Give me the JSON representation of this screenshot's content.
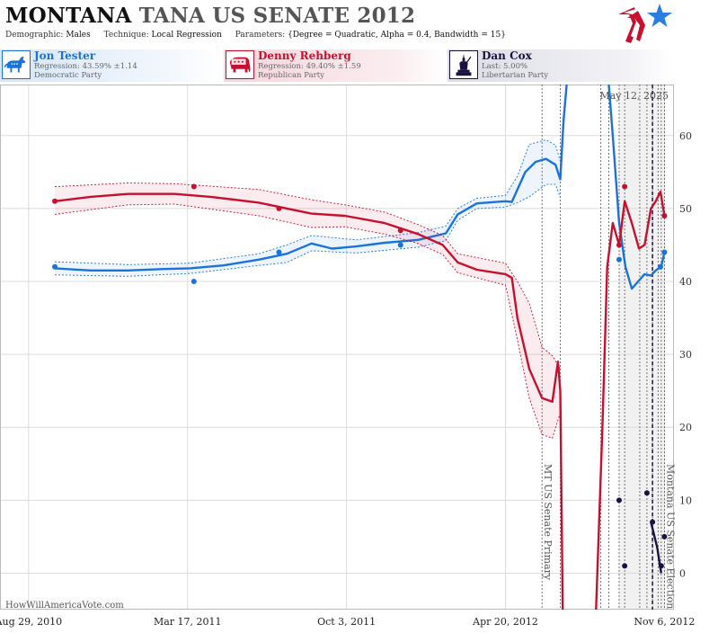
{
  "header": {
    "title_state": "MONTANA",
    "title_race": "TANA US SENATE 2012",
    "demographic_label": "Demographic:",
    "demographic_value": "Males",
    "technique_label": "Technique:",
    "technique_value": "Local Regression",
    "parameters_label": "Parameters:",
    "parameters_value": "{Degree = Quadratic, Alpha = 0.4, Bandwidth = 15}"
  },
  "candidates": [
    {
      "name": "Jon Tester",
      "stat": "Regression: 43.59% ±1.14",
      "party": "Democratic Party",
      "icon": "donkey-icon",
      "color": "#1a73d9"
    },
    {
      "name": "Denny Rehberg",
      "stat": "Regression: 49.40% ±1.59",
      "party": "Republican Party",
      "icon": "elephant-icon",
      "color": "#c8102e"
    },
    {
      "name": "Dan Cox",
      "stat": "Last: 5.00%",
      "party": "Libertarian Party",
      "icon": "liberty-icon",
      "color": "#1a1240"
    }
  ],
  "credit": "HowWillAmericaVote.com",
  "chart_data": {
    "type": "line",
    "x_axis": {
      "type": "date",
      "range": [
        "2010-07-24",
        "2012-11-18"
      ],
      "tick_labels": [
        "Aug 29, 2010",
        "Mar 17, 2011",
        "Oct 3, 2011",
        "Apr 20, 2012",
        "Nov 6, 2012"
      ],
      "tick_dates": [
        "2010-08-29",
        "2011-03-17",
        "2011-10-03",
        "2012-04-20",
        "2012-11-06"
      ]
    },
    "y_axis": {
      "range": [
        -5,
        67
      ],
      "ticks": [
        0,
        10,
        20,
        30,
        40,
        50,
        60
      ],
      "side": "right"
    },
    "grid": true,
    "today_label": "May 12, 2025",
    "annotations": [
      {
        "date": "2012-06-05",
        "label": "MT US Senate Primary"
      },
      {
        "date": "2012-11-06",
        "label": "Montana US Senate Election"
      }
    ],
    "series": [
      {
        "name": "Jon Tester",
        "color": "#1a73d9",
        "line": [
          [
            "2010-10-01",
            41.8
          ],
          [
            "2010-11-15",
            41.5
          ],
          [
            "2011-01-01",
            41.5
          ],
          [
            "2011-02-15",
            41.7
          ],
          [
            "2011-03-20",
            41.8
          ],
          [
            "2011-05-01",
            42.2
          ],
          [
            "2011-06-15",
            43.0
          ],
          [
            "2011-07-20",
            43.8
          ],
          [
            "2011-08-20",
            45.2
          ],
          [
            "2011-09-15",
            44.5
          ],
          [
            "2011-10-15",
            44.8
          ],
          [
            "2011-11-20",
            45.3
          ],
          [
            "2012-01-01",
            45.7
          ],
          [
            "2012-02-05",
            46.6
          ],
          [
            "2012-02-20",
            49.2
          ],
          [
            "2012-03-15",
            50.7
          ],
          [
            "2012-04-20",
            51.0
          ],
          [
            "2012-04-28",
            50.9
          ],
          [
            "2012-05-05",
            52.6
          ],
          [
            "2012-05-15",
            55.0
          ],
          [
            "2012-05-28",
            56.4
          ],
          [
            "2012-06-10",
            56.8
          ],
          [
            "2012-06-22",
            56.0
          ],
          [
            "2012-06-28",
            54.0
          ],
          [
            "2012-07-02",
            62.0
          ],
          [
            "2012-07-06",
            67.0
          ]
        ],
        "line2": [
          [
            "2012-08-28",
            67.0
          ],
          [
            "2012-09-02",
            60.0
          ],
          [
            "2012-09-10",
            48.0
          ],
          [
            "2012-09-18",
            42.0
          ],
          [
            "2012-09-26",
            39.0
          ],
          [
            "2012-10-04",
            40.0
          ],
          [
            "2012-10-12",
            41.0
          ],
          [
            "2012-10-20",
            40.8
          ],
          [
            "2012-10-26",
            41.5
          ],
          [
            "2012-11-02",
            42.0
          ],
          [
            "2012-11-06",
            44.0
          ]
        ],
        "band_upper": [
          [
            "2010-10-01",
            42.7
          ],
          [
            "2011-01-01",
            42.3
          ],
          [
            "2011-03-20",
            42.5
          ],
          [
            "2011-06-15",
            43.8
          ],
          [
            "2011-07-20",
            45.0
          ],
          [
            "2011-08-20",
            46.3
          ],
          [
            "2011-10-15",
            45.7
          ],
          [
            "2012-01-01",
            46.7
          ],
          [
            "2012-02-05",
            47.6
          ],
          [
            "2012-02-20",
            50.0
          ],
          [
            "2012-03-15",
            51.4
          ],
          [
            "2012-04-20",
            51.8
          ],
          [
            "2012-05-05",
            54.4
          ],
          [
            "2012-05-20",
            58.8
          ],
          [
            "2012-06-10",
            59.4
          ],
          [
            "2012-06-22",
            58.7
          ],
          [
            "2012-06-28",
            56.5
          ]
        ],
        "band_lower": [
          [
            "2010-10-01",
            40.9
          ],
          [
            "2011-01-01",
            40.7
          ],
          [
            "2011-03-20",
            41.1
          ],
          [
            "2011-06-15",
            42.2
          ],
          [
            "2011-07-20",
            42.6
          ],
          [
            "2011-08-20",
            44.2
          ],
          [
            "2011-10-15",
            43.9
          ],
          [
            "2012-01-01",
            44.7
          ],
          [
            "2012-02-05",
            45.6
          ],
          [
            "2012-02-20",
            48.4
          ],
          [
            "2012-03-15",
            50.0
          ],
          [
            "2012-04-20",
            50.2
          ],
          [
            "2012-05-05",
            50.8
          ],
          [
            "2012-05-20",
            51.6
          ],
          [
            "2012-06-10",
            53.3
          ],
          [
            "2012-06-22",
            53.3
          ],
          [
            "2012-06-28",
            51.5
          ]
        ],
        "points": [
          [
            "2010-10-01",
            42.0
          ],
          [
            "2011-03-25",
            40.0
          ],
          [
            "2011-07-10",
            44.0
          ],
          [
            "2011-12-10",
            45.0
          ],
          [
            "2012-09-10",
            43.0
          ],
          [
            "2012-11-01",
            42.0
          ],
          [
            "2012-11-06",
            44.0
          ]
        ]
      },
      {
        "name": "Denny Rehberg",
        "color": "#c8102e",
        "line": [
          [
            "2010-10-01",
            51.0
          ],
          [
            "2010-11-15",
            51.6
          ],
          [
            "2011-01-01",
            52.0
          ],
          [
            "2011-03-01",
            52.0
          ],
          [
            "2011-04-15",
            51.6
          ],
          [
            "2011-06-15",
            50.8
          ],
          [
            "2011-07-20",
            50.0
          ],
          [
            "2011-08-20",
            49.3
          ],
          [
            "2011-10-01",
            49.0
          ],
          [
            "2011-11-20",
            48.0
          ],
          [
            "2012-01-01",
            46.5
          ],
          [
            "2012-02-01",
            45.0
          ],
          [
            "2012-02-20",
            42.6
          ],
          [
            "2012-03-15",
            41.6
          ],
          [
            "2012-04-20",
            41.0
          ],
          [
            "2012-04-28",
            40.5
          ],
          [
            "2012-05-05",
            35.0
          ],
          [
            "2012-05-20",
            28.0
          ],
          [
            "2012-06-05",
            24.0
          ],
          [
            "2012-06-18",
            23.5
          ],
          [
            "2012-06-25",
            29.0
          ],
          [
            "2012-06-28",
            25.0
          ],
          [
            "2012-07-01",
            -5.0
          ]
        ],
        "line2": [
          [
            "2012-08-12",
            -5.0
          ],
          [
            "2012-08-20",
            20.0
          ],
          [
            "2012-08-26",
            42.0
          ],
          [
            "2012-09-02",
            48.0
          ],
          [
            "2012-09-10",
            45.0
          ],
          [
            "2012-09-17",
            51.0
          ],
          [
            "2012-09-26",
            48.0
          ],
          [
            "2012-10-05",
            44.5
          ],
          [
            "2012-10-12",
            45.0
          ],
          [
            "2012-10-20",
            50.0
          ],
          [
            "2012-10-26",
            51.0
          ],
          [
            "2012-11-01",
            52.3
          ],
          [
            "2012-11-06",
            49.0
          ]
        ],
        "band_upper": [
          [
            "2010-10-01",
            53.0
          ],
          [
            "2011-01-01",
            53.5
          ],
          [
            "2011-03-01",
            53.4
          ],
          [
            "2011-06-15",
            52.6
          ],
          [
            "2011-08-20",
            51.2
          ],
          [
            "2011-10-01",
            50.5
          ],
          [
            "2011-11-20",
            49.5
          ],
          [
            "2012-01-01",
            47.8
          ],
          [
            "2012-02-01",
            46.3
          ],
          [
            "2012-02-20",
            43.8
          ],
          [
            "2012-04-20",
            42.5
          ],
          [
            "2012-05-05",
            40.0
          ],
          [
            "2012-05-20",
            37.0
          ],
          [
            "2012-06-05",
            31.0
          ],
          [
            "2012-06-18",
            29.8
          ],
          [
            "2012-06-28",
            28.0
          ]
        ],
        "band_lower": [
          [
            "2010-10-01",
            49.2
          ],
          [
            "2011-01-01",
            50.5
          ],
          [
            "2011-03-01",
            50.6
          ],
          [
            "2011-06-15",
            49.0
          ],
          [
            "2011-08-20",
            47.4
          ],
          [
            "2011-10-01",
            47.5
          ],
          [
            "2011-11-20",
            46.5
          ],
          [
            "2012-01-01",
            45.2
          ],
          [
            "2012-02-01",
            43.7
          ],
          [
            "2012-02-20",
            41.2
          ],
          [
            "2012-04-20",
            39.5
          ],
          [
            "2012-05-05",
            32.0
          ],
          [
            "2012-05-20",
            24.0
          ],
          [
            "2012-06-05",
            19.0
          ],
          [
            "2012-06-18",
            18.5
          ],
          [
            "2012-06-28",
            22.0
          ]
        ],
        "points": [
          [
            "2010-10-01",
            51.0
          ],
          [
            "2011-03-25",
            53.0
          ],
          [
            "2011-07-10",
            50.0
          ],
          [
            "2011-12-10",
            47.0
          ],
          [
            "2012-09-10",
            45.0
          ],
          [
            "2012-09-17",
            53.0
          ],
          [
            "2012-11-06",
            49.0
          ]
        ]
      },
      {
        "name": "Dan Cox",
        "color": "#1a1240",
        "line": [
          [
            "2012-10-20",
            7.0
          ],
          [
            "2012-10-28",
            3.5
          ],
          [
            "2012-11-02",
            0.0
          ]
        ],
        "points": [
          [
            "2012-09-10",
            10.0
          ],
          [
            "2012-09-17",
            1.0
          ],
          [
            "2012-10-15",
            11.0
          ],
          [
            "2012-10-22",
            7.0
          ],
          [
            "2012-11-02",
            1.0
          ],
          [
            "2012-11-06",
            5.0
          ]
        ]
      }
    ]
  }
}
